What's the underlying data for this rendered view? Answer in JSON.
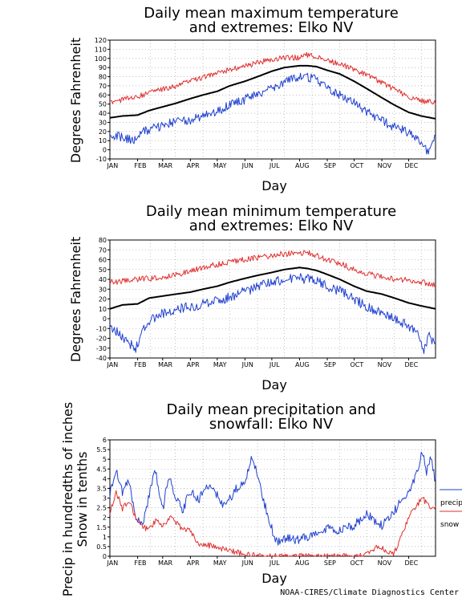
{
  "x_label": "Day",
  "months": [
    "JAN",
    "FEB",
    "MAR",
    "APR",
    "MAY",
    "JUN",
    "JUL",
    "AUG",
    "SEP",
    "OCT",
    "NOV",
    "DEC"
  ],
  "credit": "NOAA-CIRES/Climate Diagnostics Center",
  "colors": {
    "mean": "#000000",
    "high": "#e03030",
    "low": "#2040d0",
    "precip": "#2040d0",
    "snow": "#e03030"
  },
  "chart_data": [
    {
      "type": "line",
      "title_line1": "Daily mean maximum temperature",
      "title_line2": "and extremes: Elko NV",
      "xlabel": "Day",
      "ylabel": "Degrees Fahrenheit",
      "ylim": [
        -10,
        120
      ],
      "yticks": [
        -10,
        0,
        10,
        20,
        30,
        40,
        50,
        60,
        70,
        80,
        90,
        100,
        110,
        120
      ],
      "grid": true,
      "series": [
        {
          "role": "mean",
          "days": [
            1,
            15,
            32,
            45,
            60,
            75,
            91,
            105,
            121,
            135,
            152,
            166,
            182,
            196,
            213,
            222,
            232,
            244,
            258,
            274,
            288,
            305,
            319,
            335,
            349,
            365
          ],
          "values": [
            35,
            37,
            38,
            43,
            47,
            51,
            56,
            60,
            64,
            70,
            75,
            80,
            86,
            90,
            92,
            92,
            91,
            87,
            83,
            75,
            67,
            57,
            49,
            41,
            37,
            34
          ]
        },
        {
          "role": "high",
          "days": [
            1,
            15,
            32,
            45,
            60,
            75,
            91,
            105,
            121,
            135,
            152,
            166,
            182,
            196,
            213,
            222,
            232,
            244,
            258,
            274,
            288,
            305,
            319,
            335,
            349,
            365
          ],
          "values": [
            52,
            55,
            58,
            63,
            66,
            70,
            75,
            79,
            84,
            88,
            92,
            95,
            99,
            101,
            101,
            104,
            102,
            98,
            94,
            88,
            82,
            74,
            66,
            58,
            54,
            52
          ]
        },
        {
          "role": "low",
          "days": [
            1,
            10,
            20,
            28,
            35,
            45,
            55,
            65,
            75,
            91,
            105,
            121,
            135,
            152,
            166,
            182,
            196,
            205,
            213,
            222,
            232,
            244,
            258,
            274,
            288,
            305,
            319,
            330,
            340,
            350,
            355,
            360,
            365
          ],
          "values": [
            13,
            15,
            12,
            10,
            18,
            22,
            25,
            28,
            31,
            33,
            37,
            42,
            50,
            55,
            61,
            67,
            73,
            78,
            80,
            79,
            77,
            68,
            60,
            52,
            42,
            32,
            25,
            22,
            14,
            8,
            -2,
            3,
            15
          ]
        }
      ]
    },
    {
      "type": "line",
      "title_line1": "Daily mean minimum temperature",
      "title_line2": "and extremes: Elko NV",
      "xlabel": "Day",
      "ylabel": "Degrees Fahrenheit",
      "ylim": [
        -40,
        80
      ],
      "yticks": [
        -40,
        -30,
        -20,
        -10,
        0,
        10,
        20,
        30,
        40,
        50,
        60,
        70,
        80
      ],
      "grid": true,
      "series": [
        {
          "role": "mean",
          "days": [
            1,
            15,
            32,
            45,
            60,
            75,
            91,
            105,
            121,
            135,
            152,
            166,
            182,
            196,
            213,
            222,
            232,
            244,
            258,
            274,
            288,
            305,
            319,
            335,
            349,
            365
          ],
          "values": [
            10,
            14,
            15,
            21,
            23,
            25,
            27,
            30,
            33,
            37,
            41,
            44,
            47,
            50,
            52,
            51,
            49,
            45,
            40,
            33,
            28,
            25,
            21,
            16,
            13,
            10
          ]
        },
        {
          "role": "high",
          "days": [
            1,
            15,
            32,
            45,
            60,
            75,
            91,
            105,
            121,
            135,
            152,
            166,
            182,
            196,
            213,
            222,
            232,
            244,
            258,
            274,
            288,
            305,
            319,
            335,
            349,
            365
          ],
          "values": [
            37,
            38,
            40,
            41,
            42,
            45,
            48,
            52,
            55,
            58,
            60,
            62,
            64,
            66,
            66,
            67,
            64,
            60,
            56,
            50,
            46,
            42,
            40,
            39,
            37,
            35
          ]
        },
        {
          "role": "low",
          "days": [
            1,
            12,
            22,
            30,
            38,
            48,
            60,
            75,
            91,
            105,
            121,
            135,
            152,
            166,
            182,
            196,
            213,
            222,
            232,
            244,
            258,
            274,
            288,
            305,
            319,
            330,
            340,
            348,
            352,
            358,
            365
          ],
          "values": [
            -10,
            -15,
            -25,
            -30,
            -10,
            0,
            5,
            10,
            12,
            15,
            18,
            22,
            28,
            32,
            37,
            40,
            41,
            40,
            38,
            33,
            28,
            20,
            12,
            5,
            0,
            -5,
            -10,
            -20,
            -33,
            -18,
            -25
          ]
        }
      ]
    },
    {
      "type": "line",
      "title_line1": "Daily mean precipitation and",
      "title_line2": "snowfall: Elko NV",
      "xlabel": "Day",
      "ylabel_line1": "Precip in hundredths of inches",
      "ylabel_line2": "Snow in tenths",
      "ylim": [
        0,
        6
      ],
      "yticks": [
        0,
        0.5,
        1,
        1.5,
        2,
        2.5,
        3,
        3.5,
        4,
        4.5,
        5,
        5.5,
        6
      ],
      "ytick_labels": [
        "0",
        "0.5",
        "1",
        "1.5",
        "2",
        "2.5",
        "3",
        "3.5",
        "4",
        "4.5",
        "5",
        "5.5",
        "6"
      ],
      "grid": true,
      "legend": {
        "position": "right",
        "entries": [
          "precip",
          "snow"
        ]
      },
      "series": [
        {
          "name": "precip",
          "role": "precip",
          "days": [
            1,
            8,
            15,
            22,
            30,
            38,
            45,
            52,
            60,
            67,
            75,
            82,
            91,
            100,
            110,
            121,
            130,
            140,
            152,
            160,
            166,
            172,
            180,
            186,
            192,
            200,
            210,
            222,
            232,
            244,
            258,
            274,
            288,
            305,
            315,
            325,
            335,
            342,
            350,
            355,
            360,
            365
          ],
          "values": [
            3.2,
            4.5,
            3.3,
            3.8,
            2.1,
            1.6,
            3.2,
            4.4,
            2.4,
            4.2,
            3.0,
            2.4,
            3.3,
            2.9,
            3.6,
            3.1,
            2.5,
            3.4,
            3.7,
            5.2,
            4.3,
            3.0,
            1.8,
            0.8,
            0.8,
            1.0,
            0.8,
            1.0,
            1.2,
            1.4,
            1.3,
            1.6,
            2.2,
            1.6,
            2.0,
            2.8,
            3.3,
            4.0,
            5.3,
            4.4,
            5.0,
            3.8
          ]
        },
        {
          "name": "snow",
          "role": "snow",
          "days": [
            1,
            8,
            15,
            22,
            30,
            38,
            45,
            52,
            60,
            70,
            80,
            91,
            100,
            110,
            121,
            135,
            152,
            160,
            175,
            190,
            213,
            244,
            274,
            288,
            300,
            310,
            318,
            325,
            335,
            342,
            350,
            358,
            365
          ],
          "values": [
            2.2,
            3.4,
            2.4,
            2.9,
            2.0,
            1.5,
            1.4,
            1.8,
            1.6,
            2.0,
            1.5,
            1.3,
            0.6,
            0.6,
            0.4,
            0.3,
            0.1,
            0.05,
            0,
            0,
            0,
            0,
            0,
            0.1,
            0.5,
            0.3,
            0.1,
            0.8,
            2.0,
            2.5,
            3.0,
            2.6,
            2.5
          ]
        }
      ]
    }
  ]
}
